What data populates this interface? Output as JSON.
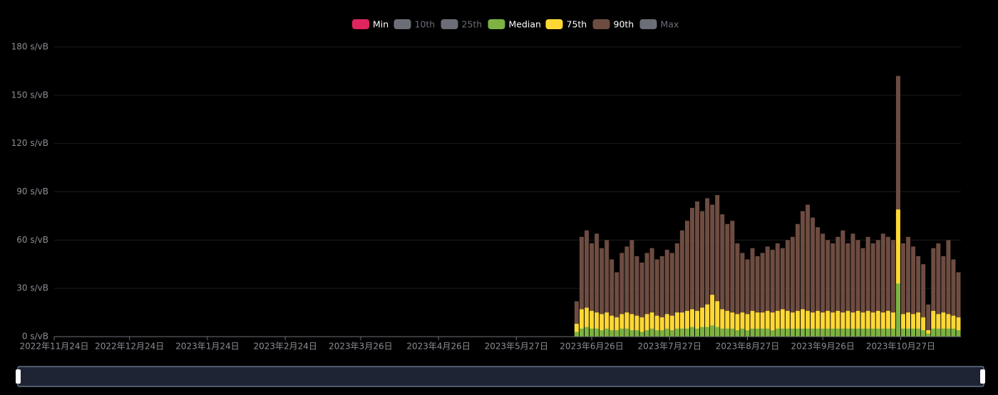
{
  "chart_data": {
    "type": "bar",
    "x": [
      "2023-06-20",
      "2023-06-22",
      "2023-06-24",
      "2023-06-26",
      "2023-06-28",
      "2023-06-30",
      "2023-07-02",
      "2023-07-04",
      "2023-07-06",
      "2023-07-08",
      "2023-07-10",
      "2023-07-12",
      "2023-07-14",
      "2023-07-16",
      "2023-07-18",
      "2023-07-20",
      "2023-07-22",
      "2023-07-24",
      "2023-07-26",
      "2023-07-28",
      "2023-07-30",
      "2023-08-01",
      "2023-08-03",
      "2023-08-05",
      "2023-08-07",
      "2023-08-09",
      "2023-08-11",
      "2023-08-13",
      "2023-08-15",
      "2023-08-17",
      "2023-08-19",
      "2023-08-21",
      "2023-08-23",
      "2023-08-25",
      "2023-08-27",
      "2023-08-29",
      "2023-08-31",
      "2023-09-02",
      "2023-09-04",
      "2023-09-06",
      "2023-09-08",
      "2023-09-10",
      "2023-09-12",
      "2023-09-14",
      "2023-09-16",
      "2023-09-18",
      "2023-09-20",
      "2023-09-22",
      "2023-09-24",
      "2023-09-26",
      "2023-09-28",
      "2023-09-30",
      "2023-10-02",
      "2023-10-04",
      "2023-10-06",
      "2023-10-08",
      "2023-10-10",
      "2023-10-12",
      "2023-10-14",
      "2023-10-16",
      "2023-10-18",
      "2023-10-20",
      "2023-10-22",
      "2023-10-24",
      "2023-10-26",
      "2023-10-28",
      "2023-10-30",
      "2023-11-01",
      "2023-11-03",
      "2023-11-05",
      "2023-11-07",
      "2023-11-09",
      "2023-11-11",
      "2023-11-13",
      "2023-11-15",
      "2023-11-17",
      "2023-11-19"
    ],
    "series": [
      {
        "name": "Min",
        "color": "#e0245e",
        "active": true
      },
      {
        "name": "10th",
        "color": "#6b6e76",
        "active": false
      },
      {
        "name": "25th",
        "color": "#6b6e76",
        "active": false
      },
      {
        "name": "Median",
        "color": "#7cb342",
        "active": true,
        "values": [
          3,
          5,
          6,
          5,
          5,
          4,
          5,
          4,
          4,
          5,
          5,
          4,
          4,
          3,
          4,
          5,
          4,
          4,
          5,
          4,
          5,
          5,
          5,
          6,
          5,
          6,
          6,
          7,
          6,
          5,
          5,
          5,
          4,
          5,
          4,
          5,
          5,
          5,
          5,
          4,
          5,
          5,
          5,
          5,
          5,
          5,
          5,
          5,
          5,
          5,
          5,
          5,
          5,
          5,
          5,
          5,
          5,
          5,
          5,
          5,
          5,
          5,
          5,
          5,
          33,
          5,
          5,
          5,
          5,
          4,
          2,
          5,
          5,
          5,
          5,
          5,
          4
        ]
      },
      {
        "name": "75th",
        "color": "#fdd835",
        "active": true,
        "values": [
          8,
          17,
          18,
          16,
          15,
          14,
          15,
          13,
          12,
          14,
          15,
          14,
          13,
          12,
          14,
          15,
          13,
          12,
          14,
          13,
          15,
          15,
          16,
          17,
          16,
          18,
          20,
          26,
          22,
          17,
          16,
          15,
          14,
          15,
          14,
          16,
          15,
          15,
          16,
          15,
          16,
          17,
          16,
          15,
          16,
          17,
          16,
          15,
          16,
          15,
          16,
          15,
          16,
          15,
          16,
          15,
          16,
          15,
          16,
          15,
          16,
          15,
          16,
          15,
          79,
          14,
          15,
          14,
          15,
          12,
          4,
          16,
          14,
          15,
          14,
          13,
          12
        ]
      },
      {
        "name": "90th",
        "color": "#6d4c41",
        "active": true,
        "values": [
          22,
          62,
          66,
          58,
          64,
          55,
          60,
          48,
          40,
          52,
          56,
          60,
          50,
          46,
          52,
          55,
          48,
          50,
          54,
          52,
          58,
          66,
          72,
          80,
          84,
          78,
          86,
          82,
          88,
          76,
          70,
          72,
          58,
          52,
          48,
          55,
          50,
          52,
          56,
          54,
          58,
          55,
          60,
          62,
          70,
          78,
          82,
          74,
          68,
          64,
          60,
          58,
          62,
          66,
          58,
          64,
          60,
          55,
          62,
          58,
          60,
          64,
          62,
          60,
          162,
          58,
          62,
          56,
          50,
          45,
          20,
          55,
          58,
          50,
          60,
          48,
          40
        ]
      },
      {
        "name": "Max",
        "color": "#6b6e76",
        "active": false
      }
    ],
    "xlim": [
      "2022-11-24",
      "2023-11-20"
    ],
    "xticks": [
      {
        "value": "2022-11-24",
        "label": "2022年11月24日"
      },
      {
        "value": "2022-12-24",
        "label": "2022年12月24日"
      },
      {
        "value": "2023-01-24",
        "label": "2023年1月24日"
      },
      {
        "value": "2023-02-24",
        "label": "2023年2月24日"
      },
      {
        "value": "2023-03-26",
        "label": "2023年3月26日"
      },
      {
        "value": "2023-04-26",
        "label": "2023年4月26日"
      },
      {
        "value": "2023-05-27",
        "label": "2023年5月27日"
      },
      {
        "value": "2023-06-26",
        "label": "2023年6月26日"
      },
      {
        "value": "2023-07-27",
        "label": "2023年7月27日"
      },
      {
        "value": "2023-08-27",
        "label": "2023年8月27日"
      },
      {
        "value": "2023-09-26",
        "label": "2023年9月26日"
      },
      {
        "value": "2023-10-27",
        "label": "2023年10月27日"
      }
    ],
    "ylim": [
      0,
      180
    ],
    "yticks": [
      {
        "value": 0,
        "label": "0 s/vB"
      },
      {
        "value": 30,
        "label": "30 s/vB"
      },
      {
        "value": 60,
        "label": "60 s/vB"
      },
      {
        "value": 90,
        "label": "90 s/vB"
      },
      {
        "value": 120,
        "label": "120 s/vB"
      },
      {
        "value": 150,
        "label": "150 s/vB"
      },
      {
        "value": 180,
        "label": "180 s/vB"
      }
    ],
    "grid": true
  }
}
